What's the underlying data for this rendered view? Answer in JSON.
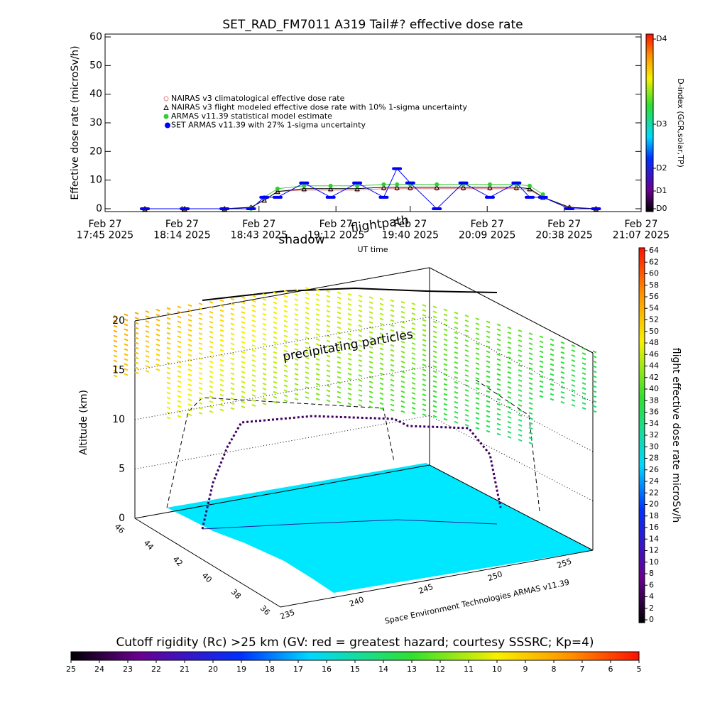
{
  "chart_data": [
    {
      "type": "line",
      "title": "SET_RAD_FM7011  A319 Tail#? effective dose rate",
      "ylabel": "Effective dose rate (microSv/h)",
      "xlabel": "UT time",
      "xlim": [
        "2025-02-27T17:45",
        "2025-02-27T21:07"
      ],
      "xticks": [
        {
          "value": "2025-02-27T17:45",
          "label": "Feb 27\n17:45 2025"
        },
        {
          "value": "2025-02-27T18:14",
          "label": "Feb 27\n18:14 2025"
        },
        {
          "value": "2025-02-27T18:43",
          "label": "Feb 27\n18:43 2025"
        },
        {
          "value": "2025-02-27T19:12",
          "label": "Feb 27\n19:12 2025"
        },
        {
          "value": "2025-02-27T19:40",
          "label": "Feb 27\n19:40 2025"
        },
        {
          "value": "2025-02-27T20:09",
          "label": "Feb 27\n20:09 2025"
        },
        {
          "value": "2025-02-27T20:38",
          "label": "Feb 27\n20:38 2025"
        },
        {
          "value": "2025-02-27T21:07",
          "label": "Feb 27\n21:07 2025"
        }
      ],
      "ylim": [
        -1,
        61
      ],
      "yticks": [
        0,
        10,
        20,
        30,
        40,
        50,
        60
      ],
      "x": [
        "2025-02-27T18:00",
        "2025-02-27T18:15",
        "2025-02-27T18:30",
        "2025-02-27T18:40",
        "2025-02-27T18:45",
        "2025-02-27T18:50",
        "2025-02-27T19:00",
        "2025-02-27T19:10",
        "2025-02-27T19:20",
        "2025-02-27T19:30",
        "2025-02-27T19:35",
        "2025-02-27T19:40",
        "2025-02-27T19:50",
        "2025-02-27T20:00",
        "2025-02-27T20:10",
        "2025-02-27T20:20",
        "2025-02-27T20:25",
        "2025-02-27T20:30",
        "2025-02-27T20:40",
        "2025-02-27T20:50"
      ],
      "series": [
        {
          "name": "NAIRAS v3 climatological effective dose rate",
          "color": "#e08080",
          "marker": "circle",
          "values": [
            0,
            0,
            0,
            0.5,
            3,
            6,
            6.5,
            6.5,
            6.5,
            7,
            7,
            7,
            7,
            7,
            7,
            7,
            6.5,
            4,
            0.5,
            0
          ]
        },
        {
          "name": "NAIRAS v3 flight modeled effective dose rate with 10% 1-sigma uncertainty",
          "color": "#000000",
          "marker": "triangle",
          "values": [
            0,
            0,
            0,
            0.5,
            3,
            6,
            7,
            7,
            7,
            7.5,
            7.5,
            7.5,
            7.5,
            7.5,
            7.5,
            7.5,
            7,
            4,
            0.5,
            0
          ]
        },
        {
          "name": "ARMAS v11.39 statistical model estimate",
          "color": "#33cc33",
          "marker": "star",
          "values": [
            null,
            null,
            null,
            0,
            4,
            7,
            8,
            8,
            8,
            8.5,
            8.5,
            8.5,
            8.5,
            8.5,
            8.5,
            8.5,
            8,
            5,
            null,
            null
          ]
        },
        {
          "name": "SET ARMAS v11.39 with 27% 1-sigma uncertainty",
          "color": "#0000ff",
          "marker": "dot",
          "values": [
            0,
            0,
            0,
            0,
            4,
            4,
            9,
            4,
            9,
            4,
            14,
            9,
            0,
            9,
            4,
            9,
            4,
            4,
            0,
            0
          ]
        }
      ]
    },
    {
      "type": "colorbar",
      "label": "D-index (GCR,solar,TP)",
      "ticks": [
        "D0",
        "D1",
        "D2",
        "D3",
        "D4"
      ]
    },
    {
      "type": "scatter3d",
      "zlabel": "Altitude (km)",
      "zticks": [
        0,
        5,
        10,
        15,
        20
      ],
      "lat_ticks": [
        36,
        38,
        40,
        42,
        44,
        46
      ],
      "lon_ticks": [
        235,
        240,
        245,
        250,
        255
      ],
      "annotations": [
        "precipitating particles",
        "shadow",
        "flightpath"
      ],
      "credit": "Space Environment Technologies ARMAS v11.39"
    },
    {
      "type": "colorbar",
      "label": "flight effective dose rate microSv/h",
      "lim": [
        0,
        64
      ],
      "ticks": [
        0,
        2,
        4,
        6,
        8,
        10,
        12,
        14,
        16,
        18,
        20,
        22,
        24,
        26,
        28,
        30,
        32,
        34,
        36,
        38,
        40,
        42,
        44,
        46,
        48,
        50,
        52,
        54,
        56,
        58,
        60,
        62,
        64
      ]
    },
    {
      "type": "colorbar",
      "label": "Cutoff rigidity (Rc) >25 km (GV: red = greatest hazard; courtesy SSSRC; Kp=4)",
      "lim": [
        25,
        5
      ],
      "ticks": [
        25,
        24,
        23,
        22,
        21,
        20,
        19,
        18,
        17,
        16,
        15,
        14,
        13,
        12,
        11,
        10,
        9,
        8,
        7,
        6,
        5
      ]
    }
  ]
}
